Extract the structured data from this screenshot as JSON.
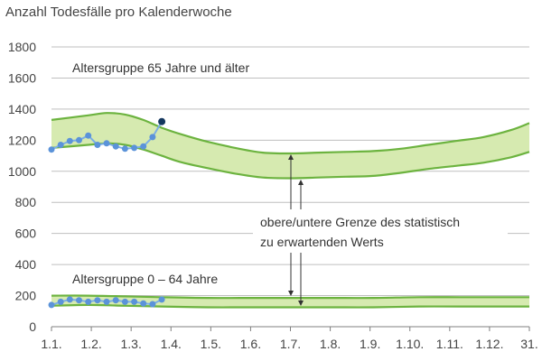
{
  "chart_data": {
    "type": "line",
    "title": "Anzahl Todesfälle pro Kalenderwoche",
    "ylim": [
      0,
      1800
    ],
    "yticks": [
      0,
      200,
      400,
      600,
      800,
      1000,
      1200,
      1400,
      1600,
      1800
    ],
    "xticks": [
      "1.1.",
      "1.2.",
      "1.3.",
      "1.4.",
      "1.5.",
      "1.6.",
      "1.7.",
      "1.8.",
      "1.9.",
      "1.10.",
      "1.11.",
      "1.12.",
      "31."
    ],
    "grid": true,
    "groups": [
      {
        "label": "Altersgruppe 65 Jahre und älter",
        "band": {
          "x_weeks": [
            0,
            4,
            6,
            8,
            10,
            12,
            14,
            17,
            20,
            23,
            26,
            29,
            32,
            35,
            38,
            41,
            44,
            47,
            50,
            52
          ],
          "upper": [
            1330,
            1360,
            1375,
            1365,
            1330,
            1280,
            1240,
            1190,
            1150,
            1120,
            1115,
            1120,
            1125,
            1130,
            1145,
            1170,
            1195,
            1220,
            1265,
            1310
          ],
          "lower": [
            1150,
            1170,
            1180,
            1170,
            1140,
            1100,
            1060,
            1020,
            985,
            960,
            955,
            960,
            965,
            970,
            990,
            1015,
            1035,
            1055,
            1090,
            1125
          ]
        },
        "observed": {
          "x_weeks": [
            0,
            1,
            2,
            3,
            4,
            5,
            6,
            7,
            8,
            9,
            10,
            11,
            12
          ],
          "values": [
            1140,
            1170,
            1195,
            1200,
            1230,
            1170,
            1180,
            1160,
            1145,
            1150,
            1160,
            1220,
            1320
          ],
          "last_highlighted": true
        }
      },
      {
        "label": "Altersgruppe 0 – 64 Jahre",
        "band": {
          "x_weeks": [
            0,
            4,
            8,
            12,
            17,
            22,
            26,
            30,
            35,
            40,
            45,
            52
          ],
          "upper": [
            200,
            200,
            195,
            190,
            185,
            185,
            185,
            185,
            185,
            190,
            190,
            190
          ],
          "lower": [
            135,
            140,
            135,
            130,
            125,
            125,
            125,
            125,
            125,
            130,
            130,
            130
          ]
        },
        "observed": {
          "x_weeks": [
            0,
            1,
            2,
            3,
            4,
            5,
            6,
            7,
            8,
            9,
            10,
            11,
            12
          ],
          "values": [
            140,
            160,
            175,
            170,
            160,
            170,
            160,
            170,
            160,
            160,
            150,
            145,
            175
          ]
        }
      }
    ],
    "annotation": {
      "line1": "obere/untere Grenze des statistisch",
      "line2": "zu erwartenden Werts"
    }
  },
  "colors": {
    "band_fill": "#d6eab0",
    "band_line": "#6cb33f",
    "observed_line": "#7aaee6",
    "observed_marker": "#5b93d9",
    "latest_marker": "#14375e",
    "grid": "#bfbfbf",
    "axis": "#7f7f7f",
    "arrow": "#333333"
  }
}
